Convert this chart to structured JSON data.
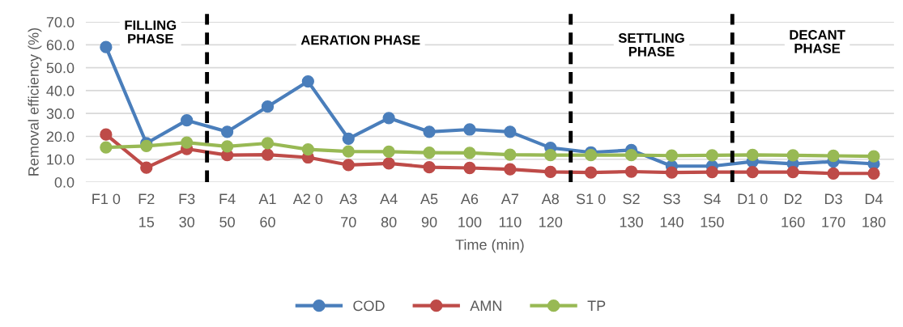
{
  "chart_data": {
    "type": "line",
    "xlabel": "Time (min)",
    "ylabel": "Removal efficiency (%)",
    "categories": [
      "F1 0",
      "F2\n15",
      "F3\n30",
      "F4\n50",
      "A1\n60",
      "A2 0",
      "A3\n70",
      "A4\n80",
      "A5\n90",
      "A6\n100",
      "A7\n110",
      "A8\n120",
      "S1 0",
      "S2\n130",
      "S3\n140",
      "S4\n150",
      "D1 0",
      "D2\n160",
      "D3\n170",
      "D4\n180"
    ],
    "series": [
      {
        "name": "COD",
        "color": "#4a7ebb",
        "values": [
          59,
          17,
          27,
          22,
          33,
          44,
          19,
          28,
          22,
          23,
          22,
          15,
          13,
          14,
          7,
          7,
          9,
          8,
          9,
          8
        ]
      },
      {
        "name": "AMN",
        "color": "#be4b48",
        "values": [
          20.8,
          6.3,
          14.5,
          11.8,
          12,
          10.8,
          7.5,
          8.2,
          6.5,
          6.2,
          5.6,
          4.5,
          4.2,
          4.6,
          4.2,
          4.4,
          4.4,
          4.4,
          3.8,
          3.8
        ]
      },
      {
        "name": "TP",
        "color": "#98b954",
        "values": [
          15.2,
          15.8,
          17.3,
          15.6,
          17,
          14.3,
          13.4,
          13.3,
          12.9,
          12.8,
          12,
          11.8,
          11.8,
          11.8,
          11.6,
          11.7,
          11.9,
          11.7,
          11.5,
          11.3
        ]
      }
    ],
    "ylim": [
      0,
      70
    ],
    "yticks": [
      {
        "value": 0,
        "label": "0.0"
      },
      {
        "value": 10,
        "label": "10.0"
      },
      {
        "value": 20,
        "label": "20.0"
      },
      {
        "value": 30,
        "label": "30.0"
      },
      {
        "value": 40,
        "label": "40.0"
      },
      {
        "value": 50,
        "label": "50.0"
      },
      {
        "value": 60,
        "label": "60.0"
      },
      {
        "value": 70,
        "label": "70.0"
      }
    ],
    "annotations": [
      "FILLING\nPHASE",
      "AERATION PHASE",
      "SETTLING\nPHASE",
      "DECANT\nPHASE"
    ],
    "grid": "y",
    "legend": "bottom",
    "marker": "circle",
    "line_style": "solid"
  }
}
